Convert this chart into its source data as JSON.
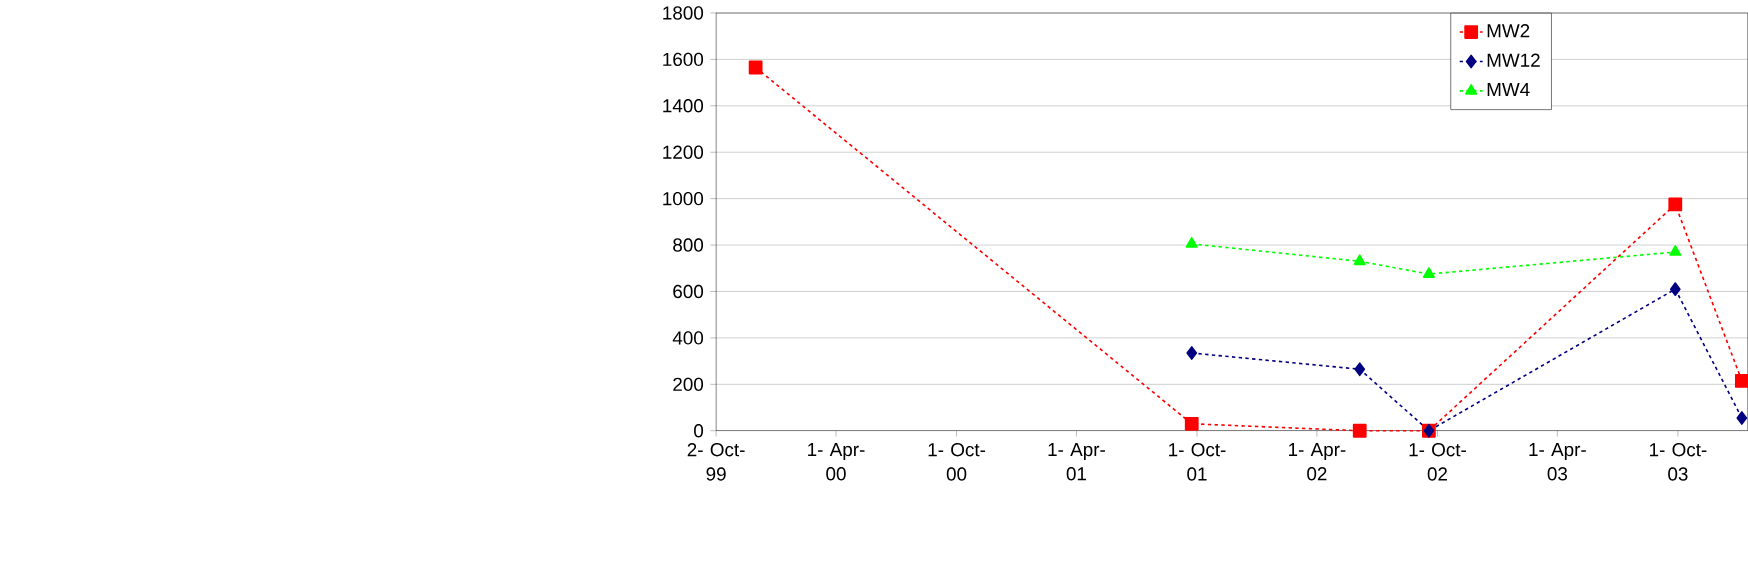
{
  "chart_data": {
    "type": "line",
    "xlim": [
      "1999-10-02",
      "2004-01-15"
    ],
    "ylim": [
      0,
      1800
    ],
    "xticks": [
      {
        "value": "1999-10-02",
        "label": "2- Oct- 99"
      },
      {
        "value": "2000-04-01",
        "label": "1- Apr- 00"
      },
      {
        "value": "2000-10-01",
        "label": "1- Oct- 00"
      },
      {
        "value": "2001-04-01",
        "label": "1- Apr- 01"
      },
      {
        "value": "2001-10-01",
        "label": "1- Oct- 01"
      },
      {
        "value": "2002-04-01",
        "label": "1- Apr- 02"
      },
      {
        "value": "2002-10-01",
        "label": "1- Oct- 02"
      },
      {
        "value": "2003-04-01",
        "label": "1- Apr- 03"
      },
      {
        "value": "2003-10-01",
        "label": "1- Oct- 03"
      }
    ],
    "yticks": [
      0,
      200,
      400,
      600,
      800,
      1000,
      1200,
      1400,
      1600,
      1800
    ],
    "grid": "y",
    "legend": "top right",
    "line_style": "dotted",
    "series": [
      {
        "name": "MW2",
        "color": "#ff0000",
        "marker": "square",
        "x": [
          "1999-12-01",
          "2001-09-23",
          "2002-06-05",
          "2002-09-18",
          "2003-09-27",
          "2004-01-06"
        ],
        "values": [
          1565,
          30,
          0,
          0,
          975,
          215
        ]
      },
      {
        "name": "MW12",
        "color": "#000080",
        "marker": "diamond",
        "x": [
          "2001-09-23",
          "2002-06-05",
          "2002-09-18",
          "2003-09-27",
          "2004-01-06"
        ],
        "values": [
          335,
          265,
          0,
          610,
          55
        ]
      },
      {
        "name": "MW4",
        "color": "#00ff00",
        "marker": "triangle",
        "x": [
          "2001-09-23",
          "2002-06-05",
          "2002-09-18",
          "2003-09-27"
        ],
        "values": [
          805,
          730,
          675,
          770
        ]
      }
    ]
  }
}
